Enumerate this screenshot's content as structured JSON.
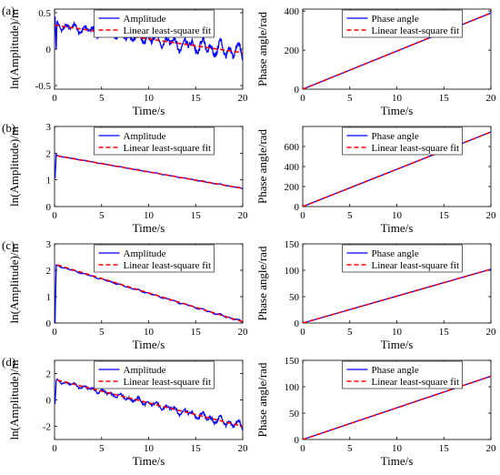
{
  "chart_data": [
    {
      "panel_label": "(a)",
      "type": "line",
      "xlabel": "Time/s",
      "ylabel": "ln(Amplitude)/m",
      "xlim": [
        0,
        20
      ],
      "ylim": [
        -0.55,
        0.55
      ],
      "xticks": [
        0,
        5,
        10,
        15,
        20
      ],
      "yticks": [
        -0.5,
        0,
        0.5
      ],
      "ytick_labels": [
        "-0.5",
        "0",
        "0.5"
      ],
      "legend": "top",
      "series": [
        {
          "name": "Amplitude",
          "color": "#0000ff",
          "style": "solid",
          "signal": {
            "start": 0.33,
            "end": -0.05,
            "osc": 0.05,
            "growth": 1.5,
            "freq": 2.1,
            "spike": [
              0.45,
              0.0
            ]
          }
        },
        {
          "name": "Linear least-square fit",
          "color": "#ff0000",
          "style": "dashed",
          "x": [
            0,
            20
          ],
          "y": [
            0.33,
            -0.05
          ]
        }
      ]
    },
    {
      "panel_label": "",
      "type": "line",
      "xlabel": "Time/s",
      "ylabel": "Phase angle/rad",
      "xlim": [
        0,
        20
      ],
      "ylim": [
        0,
        410
      ],
      "xticks": [
        0,
        5,
        10,
        15,
        20
      ],
      "yticks": [
        0,
        200,
        400
      ],
      "ytick_labels": [
        "0",
        "200",
        "400"
      ],
      "legend": "top",
      "series": [
        {
          "name": "Phase angle",
          "color": "#0000ff",
          "style": "solid",
          "x": [
            0,
            20
          ],
          "y": [
            0,
            390
          ]
        },
        {
          "name": "Linear least-square fit",
          "color": "#ff0000",
          "style": "dashed",
          "x": [
            0,
            20
          ],
          "y": [
            0,
            390
          ]
        }
      ]
    },
    {
      "panel_label": "(b)",
      "type": "line",
      "xlabel": "Time/s",
      "ylabel": "ln(Amplitude)/m",
      "xlim": [
        0,
        20
      ],
      "ylim": [
        0,
        3
      ],
      "xticks": [
        0,
        5,
        10,
        15,
        20
      ],
      "yticks": [
        0,
        1,
        2,
        3
      ],
      "ytick_labels": [
        "0",
        "1",
        "2",
        "3"
      ],
      "legend": "top",
      "series": [
        {
          "name": "Amplitude",
          "color": "#0000ff",
          "style": "solid",
          "signal": {
            "start": 1.92,
            "end": 0.68,
            "osc": 0.012,
            "growth": 0.5,
            "freq": 2.1,
            "spike": [
              1.05,
              1.95
            ]
          }
        },
        {
          "name": "Linear least-square fit",
          "color": "#ff0000",
          "style": "dashed",
          "x": [
            0.3,
            20
          ],
          "y": [
            1.9,
            0.68
          ]
        }
      ]
    },
    {
      "panel_label": "",
      "type": "line",
      "xlabel": "Time/s",
      "ylabel": "Phase angle/rad",
      "xlim": [
        0,
        20
      ],
      "ylim": [
        0,
        800
      ],
      "xticks": [
        0,
        5,
        10,
        15,
        20
      ],
      "yticks": [
        0,
        200,
        400,
        600
      ],
      "ytick_labels": [
        "0",
        "200",
        "400",
        "600"
      ],
      "legend": "top",
      "series": [
        {
          "name": "Phase angle",
          "color": "#0000ff",
          "style": "solid",
          "x": [
            0,
            20
          ],
          "y": [
            0,
            745
          ]
        },
        {
          "name": "Linear least-square fit",
          "color": "#ff0000",
          "style": "dashed",
          "x": [
            0,
            20
          ],
          "y": [
            0,
            745
          ]
        }
      ]
    },
    {
      "panel_label": "(c)",
      "type": "line",
      "xlabel": "Time/s",
      "ylabel": "ln(Amplitude)/m",
      "xlim": [
        0,
        20
      ],
      "ylim": [
        0,
        3
      ],
      "xticks": [
        0,
        5,
        10,
        15,
        20
      ],
      "yticks": [
        0,
        1,
        2,
        3
      ],
      "ytick_labels": [
        "0",
        "1",
        "2",
        "3"
      ],
      "legend": "top",
      "series": [
        {
          "name": "Amplitude",
          "color": "#0000ff",
          "style": "solid",
          "signal": {
            "start": 2.2,
            "end": 0.05,
            "osc": 0.02,
            "growth": 1.0,
            "freq": 2.1,
            "spike": [
              0.0,
              2.2
            ]
          }
        },
        {
          "name": "Linear least-square fit",
          "color": "#ff0000",
          "style": "dashed",
          "x": [
            0.3,
            20
          ],
          "y": [
            2.2,
            0.05
          ]
        }
      ]
    },
    {
      "panel_label": "",
      "type": "line",
      "xlabel": "Time/s",
      "ylabel": "Phase angle/rad",
      "xlim": [
        0,
        20
      ],
      "ylim": [
        0,
        150
      ],
      "xticks": [
        0,
        5,
        10,
        15,
        20
      ],
      "yticks": [
        0,
        50,
        100,
        150
      ],
      "ytick_labels": [
        "0",
        "50",
        "100",
        "150"
      ],
      "legend": "top",
      "series": [
        {
          "name": "Phase angle",
          "color": "#0000ff",
          "style": "solid",
          "x": [
            0,
            20
          ],
          "y": [
            0,
            102
          ]
        },
        {
          "name": "Linear least-square fit",
          "color": "#ff0000",
          "style": "dashed",
          "x": [
            0,
            20
          ],
          "y": [
            0,
            102
          ]
        }
      ]
    },
    {
      "panel_label": "(d)",
      "type": "line",
      "xlabel": "Time/s",
      "ylabel": "ln(Amplitude)/m",
      "xlim": [
        0,
        20
      ],
      "ylim": [
        -3,
        3
      ],
      "xticks": [
        0,
        5,
        10,
        15,
        20
      ],
      "yticks": [
        -2,
        0,
        2
      ],
      "ytick_labels": [
        "-2",
        "0",
        "2"
      ],
      "legend": "top",
      "series": [
        {
          "name": "Amplitude",
          "color": "#0000ff",
          "style": "solid",
          "signal": {
            "start": 1.5,
            "end": -2.0,
            "osc": 0.12,
            "growth": 2.0,
            "freq": 2.1,
            "spike": [
              -0.3,
              1.5
            ]
          }
        },
        {
          "name": "Linear least-square fit",
          "color": "#ff0000",
          "style": "dashed",
          "x": [
            0.3,
            20
          ],
          "y": [
            1.5,
            -2.0
          ]
        }
      ]
    },
    {
      "panel_label": "",
      "type": "line",
      "xlabel": "Time/s",
      "ylabel": "Phase angle/rad",
      "xlim": [
        0,
        20
      ],
      "ylim": [
        0,
        150
      ],
      "xticks": [
        0,
        5,
        10,
        15,
        20
      ],
      "yticks": [
        0,
        50,
        100,
        150
      ],
      "ytick_labels": [
        "0",
        "50",
        "100",
        "150"
      ],
      "legend": "top",
      "series": [
        {
          "name": "Phase angle",
          "color": "#0000ff",
          "style": "solid",
          "x": [
            0,
            20
          ],
          "y": [
            0,
            120
          ]
        },
        {
          "name": "Linear least-square fit",
          "color": "#ff0000",
          "style": "dashed",
          "x": [
            0,
            20
          ],
          "y": [
            0,
            120
          ]
        }
      ]
    }
  ]
}
